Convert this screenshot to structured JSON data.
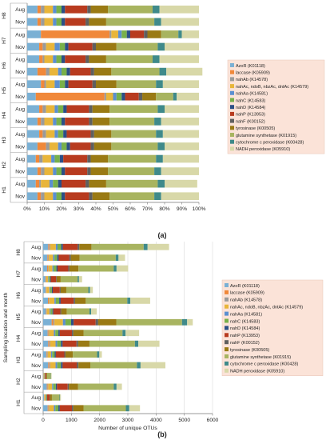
{
  "panel_labels": [
    "(a)",
    "(b)"
  ],
  "legend_colors": {
    "AzoR (K01118)": "#7ab0d4",
    "laccase (K05909)": "#f0883a",
    "nahAb (K14578)": "#9a9a9a",
    "nahAc, ndoB, nbzAc, dntAc (K14579)": "#e8b53a",
    "nahAa (K14581)": "#5b8fd0",
    "nahC (K14583)": "#78b04a",
    "nahD (K14584)": "#2b4f86",
    "nahP (K13953)": "#b83b1f",
    "nahF (K00152)": "#5f5f5f",
    "tyrosinase (K00505)": "#9a7a14",
    "glutamine synthetase (K01915)": "#a8b460",
    "cytochrome c peroxidase (K00428)": "#3f8a8a",
    "NADH peroxidase (K05910)": "#d8d8a8"
  },
  "chart_data": [
    {
      "type": "bar",
      "orientation": "horizontal",
      "stacked": true,
      "normalized": true,
      "panel": "(a)",
      "title": "",
      "xlabel": "",
      "ylabel": "",
      "xlim": [
        0,
        100
      ],
      "xticks": [
        "0%",
        "10%",
        "20%",
        "30%",
        "40%",
        "50%",
        "60%",
        "70%",
        "80%",
        "90%",
        "100%"
      ],
      "groups": [
        "H8",
        "H7",
        "H6",
        "H5",
        "H4",
        "H3",
        "H2",
        "H1"
      ],
      "categories": [
        "H8 Aug",
        "H8 Nov",
        "H7 Aug",
        "H7 Nov",
        "H6 Aug",
        "H6 Nov",
        "H5 Aug",
        "H5 Nov",
        "H4 Aug",
        "H4 Nov",
        "H3 Aug",
        "H3 Nov",
        "H2 Aug",
        "H2 Nov",
        "H1 Aug",
        "H1 Nov"
      ],
      "month_labels": [
        "Aug",
        "Nov",
        "Aug",
        "Nov",
        "Aug",
        "Nov",
        "Aug",
        "Nov",
        "Aug",
        "Nov",
        "Aug",
        "Nov",
        "Aug",
        "Nov",
        "Aug",
        "Nov"
      ],
      "legend_position": "right",
      "series": [
        {
          "name": "AzoR (K01118)",
          "values": [
            6,
            6,
            8,
            7,
            7,
            6,
            8,
            5,
            7,
            6,
            7,
            6,
            5,
            6,
            5,
            6
          ]
        },
        {
          "name": "laccase (K05909)",
          "values": [
            2,
            2,
            40,
            2,
            2,
            5,
            2,
            40,
            2,
            2,
            2,
            5,
            2,
            2,
            2,
            2
          ]
        },
        {
          "name": "nahAb (K14578)",
          "values": [
            2,
            2,
            1,
            2,
            1,
            2,
            1,
            1,
            2,
            2,
            2,
            2,
            2,
            2,
            1,
            2
          ]
        },
        {
          "name": "nahAc, ndoB, nbzAc, dntAc (K14579)",
          "values": [
            5,
            5,
            4,
            5,
            5,
            5,
            5,
            4,
            5,
            5,
            5,
            5,
            5,
            5,
            5,
            5
          ]
        },
        {
          "name": "nahAa (K14581)",
          "values": [
            2,
            2,
            2,
            3,
            2,
            2,
            3,
            2,
            2,
            2,
            2,
            2,
            2,
            2,
            2,
            2
          ]
        },
        {
          "name": "nahC (K14583)",
          "values": [
            3,
            3,
            3,
            3,
            3,
            3,
            3,
            3,
            3,
            3,
            3,
            3,
            3,
            3,
            3,
            3
          ]
        },
        {
          "name": "nahD (K14584)",
          "values": [
            2,
            2,
            2,
            2,
            2,
            2,
            2,
            2,
            2,
            2,
            2,
            2,
            2,
            2,
            2,
            2
          ]
        },
        {
          "name": "nahP (K13953)",
          "values": [
            13,
            12,
            8,
            14,
            12,
            12,
            14,
            8,
            13,
            14,
            14,
            12,
            14,
            13,
            14,
            14
          ]
        },
        {
          "name": "nahF (K00152)",
          "values": [
            2,
            2,
            2,
            2,
            2,
            2,
            2,
            2,
            2,
            2,
            2,
            2,
            2,
            2,
            2,
            2
          ]
        },
        {
          "name": "tyrosinase (K00505)",
          "values": [
            10,
            10,
            8,
            12,
            10,
            10,
            12,
            8,
            10,
            10,
            10,
            10,
            10,
            10,
            10,
            10
          ]
        },
        {
          "name": "glutamine synthetase (K01915)",
          "values": [
            26,
            28,
            10,
            24,
            27,
            28,
            23,
            10,
            28,
            26,
            26,
            27,
            28,
            27,
            30,
            26
          ]
        },
        {
          "name": "cytochrome c peroxidase (K00428)",
          "values": [
            4,
            4,
            2,
            4,
            4,
            4,
            4,
            2,
            4,
            4,
            4,
            4,
            4,
            4,
            4,
            4
          ]
        },
        {
          "name": "NADH peroxidase (K05910)",
          "values": [
            23,
            22,
            10,
            20,
            23,
            21,
            21,
            13,
            20,
            22,
            21,
            20,
            21,
            22,
            19,
            22
          ]
        }
      ]
    },
    {
      "type": "bar",
      "orientation": "horizontal",
      "stacked": true,
      "panel": "(b)",
      "title": "",
      "xlabel": "Number of unique OTUs",
      "ylabel": "Sampling location and month",
      "xlim": [
        0,
        6000
      ],
      "xticks": [
        0,
        1000,
        2000,
        3000,
        4000,
        5000,
        6000
      ],
      "groups": [
        "H8",
        "H7",
        "H6",
        "H5",
        "H4",
        "H3",
        "H2",
        "H1"
      ],
      "categories": [
        "H8 Aug",
        "H8 Nov",
        "H7 Aug",
        "H7 Nov",
        "H6 Aug",
        "H6 Nov",
        "H5 Aug",
        "H5 Nov",
        "H4 Aug",
        "H4 Nov",
        "H3 Aug",
        "H3 Nov",
        "H2 Aug",
        "H2 Nov",
        "H1 Aug",
        "H1 Nov"
      ],
      "month_labels": [
        "Aug",
        "Nov",
        "Aug",
        "Nov",
        "Aug",
        "Nov",
        "Aug",
        "Nov",
        "Aug",
        "Nov",
        "Aug",
        "Nov",
        "Aug",
        "Nov",
        "Aug",
        "Nov"
      ],
      "legend_position": "right",
      "series": [
        {
          "name": "AzoR (K01118)",
          "values": [
            180,
            150,
            140,
            80,
            90,
            170,
            100,
            300,
            160,
            180,
            120,
            180,
            10,
            130,
            30,
            160
          ]
        },
        {
          "name": "laccase (K05909)",
          "values": [
            40,
            30,
            30,
            20,
            20,
            30,
            20,
            60,
            30,
            40,
            20,
            40,
            5,
            30,
            10,
            30
          ]
        },
        {
          "name": "nahAb (K14578)",
          "values": [
            30,
            20,
            20,
            10,
            10,
            20,
            10,
            40,
            20,
            30,
            20,
            30,
            5,
            20,
            10,
            20
          ]
        },
        {
          "name": "nahAc, ndoB, nbzAc, dntAc (K14579)",
          "values": [
            200,
            150,
            140,
            70,
            100,
            180,
            100,
            300,
            170,
            190,
            120,
            190,
            20,
            140,
            40,
            170
          ]
        },
        {
          "name": "nahAa (K14581)",
          "values": [
            60,
            50,
            40,
            20,
            30,
            50,
            30,
            90,
            50,
            60,
            40,
            60,
            5,
            40,
            10,
            50
          ]
        },
        {
          "name": "nahC (K14583)",
          "values": [
            130,
            100,
            100,
            50,
            60,
            120,
            70,
            200,
            110,
            130,
            90,
            130,
            15,
            90,
            30,
            110
          ]
        },
        {
          "name": "nahD (K14584)",
          "values": [
            60,
            50,
            40,
            20,
            30,
            50,
            30,
            90,
            50,
            60,
            40,
            60,
            5,
            40,
            10,
            50
          ]
        },
        {
          "name": "nahP (K13953)",
          "values": [
            520,
            380,
            380,
            190,
            250,
            460,
            250,
            780,
            430,
            490,
            300,
            500,
            40,
            380,
            90,
            430
          ]
        },
        {
          "name": "nahF (K00152)",
          "values": [
            60,
            50,
            40,
            20,
            30,
            50,
            30,
            90,
            50,
            60,
            40,
            60,
            5,
            40,
            10,
            50
          ]
        },
        {
          "name": "tyrosinase (K00505)",
          "values": [
            430,
            310,
            320,
            140,
            200,
            380,
            200,
            640,
            360,
            400,
            260,
            420,
            30,
            330,
            70,
            360
          ]
        },
        {
          "name": "glutamine synthetase (K01915)",
          "values": [
            1850,
            1280,
            1250,
            600,
            780,
            1470,
            800,
            2330,
            1380,
            1610,
            860,
            1650,
            130,
            1260,
            270,
            1500
          ]
        },
        {
          "name": "cytochrome c peroxidase (K00428)",
          "values": [
            140,
            100,
            100,
            50,
            60,
            110,
            60,
            180,
            110,
            120,
            80,
            130,
            10,
            100,
            20,
            120
          ]
        },
        {
          "name": "NADH peroxidase (K05910)",
          "values": [
            760,
            230,
            410,
            110,
            100,
            700,
            200,
            200,
            480,
            750,
            90,
            880,
            20,
            190,
            30,
            380
          ]
        }
      ]
    }
  ]
}
